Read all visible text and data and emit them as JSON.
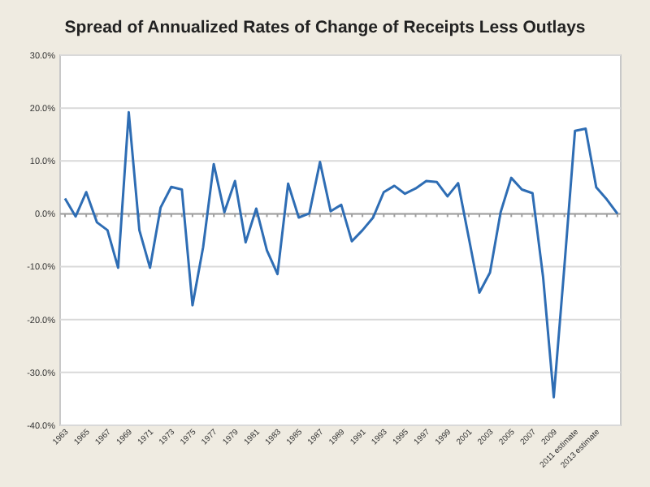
{
  "chart_data": {
    "type": "line",
    "title": "Spread of Annualized Rates of Change of Receipts Less Outlays",
    "categories": [
      "1963",
      null,
      "1965",
      null,
      "1967",
      null,
      "1969",
      null,
      "1971",
      null,
      "1973",
      null,
      "1975",
      null,
      "1977",
      null,
      "1979",
      null,
      "1981",
      null,
      "1983",
      null,
      "1985",
      null,
      "1987",
      null,
      "1989",
      null,
      "1991",
      null,
      "1993",
      null,
      "1995",
      null,
      "1997",
      null,
      "1999",
      null,
      "2001",
      null,
      "2003",
      null,
      "2005",
      null,
      "2007",
      null,
      "2009",
      null,
      "2011 estimate",
      null,
      "2013 estimate",
      null,
      null
    ],
    "series": [
      {
        "color": "#2e6db4",
        "values": [
          2.9,
          -0.5,
          4.1,
          -1.6,
          -3.1,
          -10.2,
          19.2,
          -3.1,
          -10.2,
          1.2,
          5.1,
          4.6,
          -17.3,
          -6.3,
          9.4,
          0.3,
          6.2,
          -5.4,
          1.0,
          -6.9,
          -11.4,
          5.7,
          -0.7,
          0.1,
          9.8,
          0.5,
          1.7,
          -5.2,
          -3.1,
          -0.7,
          4.1,
          5.3,
          3.8,
          4.8,
          6.2,
          6.0,
          3.3,
          5.8,
          -4.5,
          -14.9,
          -11.1,
          0.3,
          6.8,
          4.6,
          3.9,
          -12,
          -34.7,
          -10,
          15.7,
          16.1,
          5.0,
          2.7,
          0
        ]
      }
    ],
    "ylim": [
      -40,
      30
    ],
    "yticks": [
      {
        "value": -40,
        "label": "-40.0%"
      },
      {
        "value": -30,
        "label": "-30.0%"
      },
      {
        "value": -20,
        "label": "-20.0%"
      },
      {
        "value": -10,
        "label": "-10.0%"
      },
      {
        "value": 0,
        "label": "0.0%"
      },
      {
        "value": 10,
        "label": "10.0%"
      },
      {
        "value": 20,
        "label": "20.0%"
      },
      {
        "value": 30,
        "label": "30.0%"
      }
    ],
    "grid": "y",
    "marker": "none",
    "line_style": "solid"
  }
}
